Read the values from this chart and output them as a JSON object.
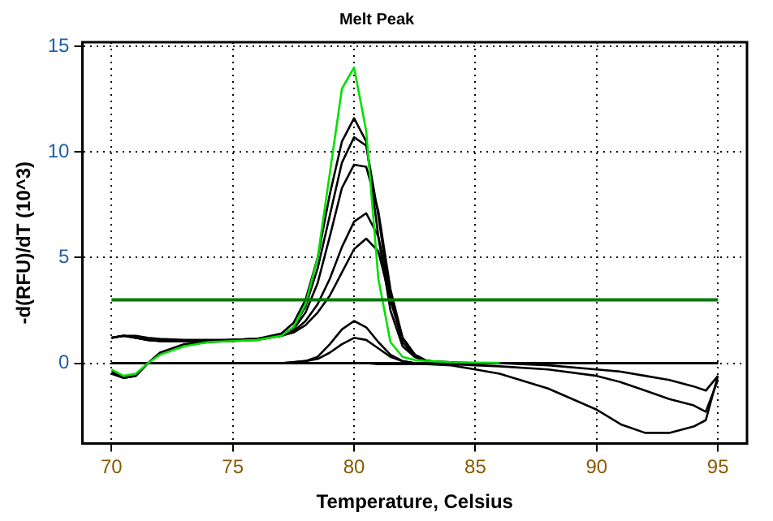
{
  "chart_data": {
    "type": "line",
    "title": "Melt Peak",
    "xlabel": "Temperature, Celsius",
    "ylabel": "-d(RFU)/dT (10^3)",
    "x": [
      70,
      70.5,
      71,
      71.5,
      72,
      73,
      74,
      75,
      76,
      77,
      77.5,
      78,
      78.5,
      79,
      79.5,
      80,
      80.5,
      81,
      81.5,
      82,
      82.5,
      83,
      84,
      85,
      86,
      88,
      90,
      91,
      92,
      93,
      94,
      94.5,
      95
    ],
    "series": [
      {
        "color": "#000000",
        "values": [
          1.2,
          1.3,
          1.3,
          1.2,
          1.15,
          1.1,
          1.1,
          1.1,
          1.15,
          1.4,
          1.9,
          3.0,
          5,
          8,
          10.5,
          11.6,
          10.5,
          6,
          2.5,
          0.8,
          0.3,
          0.1,
          0.05,
          0,
          0,
          0,
          0,
          0,
          0,
          0,
          0,
          0,
          0
        ]
      },
      {
        "color": "#000000",
        "values": [
          -0.4,
          -0.7,
          -0.6,
          0,
          0.5,
          0.9,
          1.0,
          1.05,
          1.1,
          1.3,
          1.7,
          2.7,
          4.5,
          7,
          9.5,
          10.7,
          10.3,
          7,
          3,
          1,
          0.3,
          0.1,
          0,
          0,
          0,
          0,
          0,
          0,
          0,
          0,
          0,
          0,
          0
        ]
      },
      {
        "color": "#000000",
        "values": [
          1.2,
          1.3,
          1.2,
          1.1,
          1.05,
          1.05,
          1.05,
          1.1,
          1.15,
          1.3,
          1.6,
          2.4,
          3.8,
          6,
          8.3,
          9.4,
          9.3,
          7.2,
          3.5,
          1.2,
          0.4,
          0.1,
          0,
          0,
          0,
          0,
          0,
          0,
          0,
          0,
          0,
          0,
          0
        ]
      },
      {
        "color": "#000000",
        "values": [
          1.2,
          1.3,
          1.2,
          1.1,
          1.05,
          1.05,
          1.05,
          1.1,
          1.15,
          1.3,
          1.5,
          2.0,
          2.8,
          4,
          5.5,
          6.7,
          7.1,
          6,
          3.2,
          1.2,
          0.4,
          0.1,
          0,
          0,
          0,
          0,
          0,
          0,
          0,
          0,
          0,
          0,
          0
        ]
      },
      {
        "color": "#000000",
        "values": [
          1.2,
          1.3,
          1.2,
          1.1,
          1.05,
          1.05,
          1.05,
          1.1,
          1.15,
          1.3,
          1.45,
          1.8,
          2.4,
          3.2,
          4.3,
          5.4,
          5.9,
          5.3,
          3,
          1.2,
          0.4,
          0.1,
          0,
          0,
          0,
          0,
          0,
          0,
          0,
          0,
          0,
          0,
          0
        ]
      },
      {
        "color": "#000000",
        "values": [
          0,
          0,
          0,
          0,
          0,
          0,
          0,
          0,
          0,
          0,
          0.05,
          0.1,
          0.3,
          0.9,
          1.6,
          2.0,
          1.7,
          1.0,
          0.4,
          0.1,
          0,
          0,
          0,
          0,
          0,
          0,
          0,
          0,
          0,
          0,
          0,
          0,
          0
        ]
      },
      {
        "color": "#000000",
        "values": [
          0,
          0,
          0,
          0,
          0,
          0,
          0,
          0,
          0,
          0,
          0.05,
          0.1,
          0.2,
          0.5,
          0.9,
          1.2,
          1.1,
          0.7,
          0.3,
          0.1,
          0,
          0,
          0,
          0,
          0,
          0,
          0,
          0,
          0,
          0,
          0,
          0,
          0
        ]
      },
      {
        "color": "#000000",
        "values": [
          -0.5,
          -0.7,
          -0.6,
          0,
          0,
          0,
          0,
          0,
          0,
          0,
          0,
          0,
          0,
          0,
          0,
          0,
          0,
          -0.05,
          -0.05,
          -0.05,
          -0.05,
          -0.05,
          -0.1,
          -0.3,
          -0.5,
          -1.2,
          -2.2,
          -2.9,
          -3.3,
          -3.3,
          -3.0,
          -2.7,
          -0.6
        ]
      },
      {
        "color": "#000000",
        "values": [
          0,
          0,
          0,
          0,
          0,
          0,
          0,
          0,
          0,
          0,
          0,
          0,
          0,
          0,
          0,
          0,
          0,
          0,
          0,
          0,
          0,
          0,
          -0.05,
          -0.1,
          -0.15,
          -0.3,
          -0.6,
          -0.9,
          -1.3,
          -1.7,
          -2.0,
          -2.3,
          -0.8
        ]
      },
      {
        "color": "#000000",
        "values": [
          0,
          0,
          0,
          0,
          0,
          0,
          0,
          0,
          0,
          0,
          0,
          0,
          0,
          0,
          0,
          0,
          0,
          0,
          0,
          0,
          0,
          0,
          0,
          0,
          0,
          -0.1,
          -0.3,
          -0.4,
          -0.6,
          -0.8,
          -1.1,
          -1.3,
          -0.6
        ]
      },
      {
        "color": "#00e000",
        "values": [
          -0.3,
          -0.6,
          -0.5,
          0,
          0.4,
          0.8,
          1.0,
          1.05,
          1.1,
          1.3,
          1.7,
          2.8,
          5,
          9,
          13,
          14,
          11,
          4,
          1,
          0.3,
          0.15,
          0.1,
          0.05,
          0.03,
          0.02,
          null,
          null,
          null,
          null,
          null,
          null,
          null,
          null
        ]
      }
    ],
    "xlim": [
      68.8,
      96.2
    ],
    "xticks": [
      70,
      75,
      80,
      85,
      90,
      95
    ],
    "ylim": [
      -3.8,
      15.2
    ],
    "yticks": [
      0,
      5,
      10,
      15
    ],
    "ref_lines": [
      {
        "axis": "y",
        "value": 3,
        "color": "#007a00"
      }
    ],
    "grid": true,
    "legend": false,
    "marker": "none",
    "line_style": "solid"
  }
}
